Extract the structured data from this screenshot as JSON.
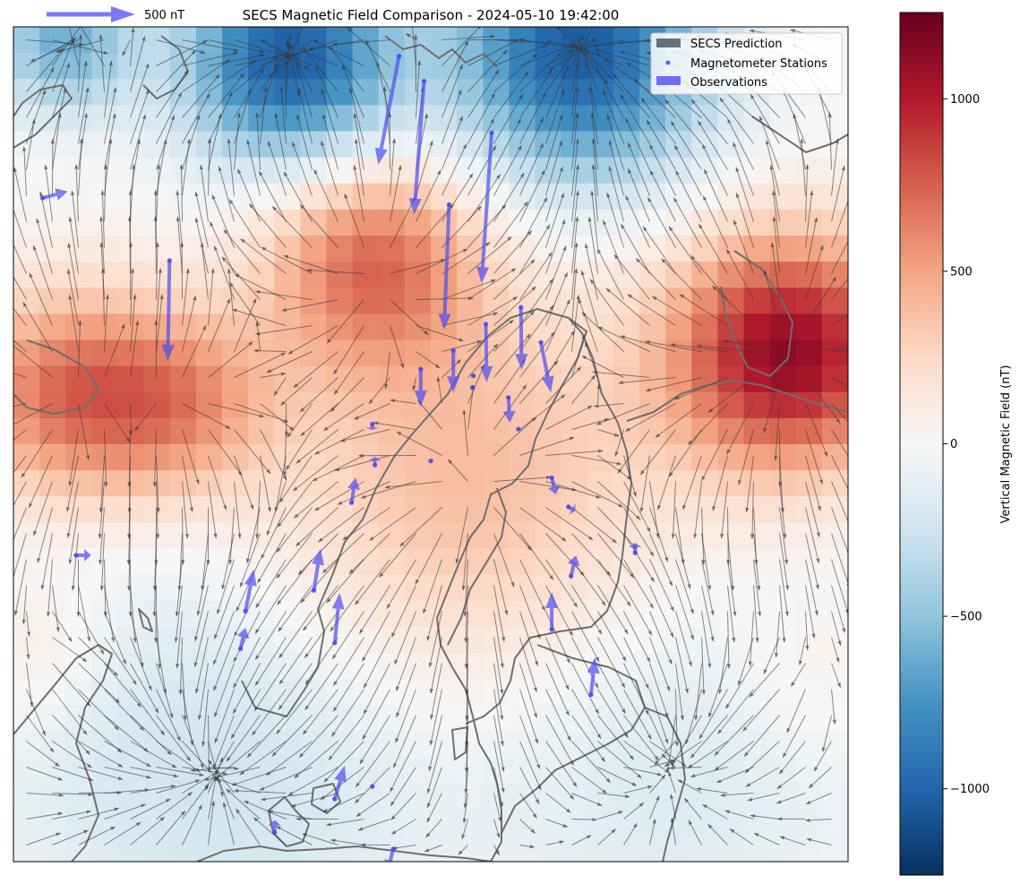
{
  "chart_data": {
    "type": "heatmap",
    "title": "SECS Magnetic Field Comparison - 2024-05-10 19:42:00",
    "colorbar": {
      "label": "Vertical Magnetic Field (nT)",
      "range": [
        -1250,
        1250
      ],
      "ticks": [
        -1000,
        -500,
        0,
        500,
        1000
      ],
      "tick_labels": [
        "−1000",
        "−500",
        "0",
        "500",
        "1000"
      ],
      "colormap": "RdBu_r"
    },
    "quiver_key": {
      "label": "500 nT",
      "value": 500
    },
    "legend": {
      "placement": "top-right",
      "entries": [
        {
          "label": "SECS Prediction",
          "color": "#6b7076"
        },
        {
          "label": "Magnetometer Stations",
          "color": "#5e5ef0"
        },
        {
          "label": "Observations",
          "color": "#6e6ef5"
        }
      ]
    },
    "grid": {
      "nx": 32,
      "ny": 32
    },
    "sources": [
      {
        "x": 0.06,
        "y": 0.44,
        "amp": 650,
        "s": 0.09
      },
      {
        "x": 0.2,
        "y": 0.45,
        "amp": 480,
        "s": 0.08
      },
      {
        "x": 0.43,
        "y": 0.28,
        "amp": 650,
        "s": 0.09
      },
      {
        "x": 0.93,
        "y": 0.39,
        "amp": 1100,
        "s": 0.1
      },
      {
        "x": 0.55,
        "y": 0.56,
        "amp": 420,
        "s": 0.18
      },
      {
        "x": 0.33,
        "y": 0.04,
        "amp": -1050,
        "s": 0.09
      },
      {
        "x": 0.68,
        "y": 0.03,
        "amp": -1050,
        "s": 0.11
      },
      {
        "x": 0.06,
        "y": 0.02,
        "amp": -600,
        "s": 0.06
      },
      {
        "x": 0.25,
        "y": 0.88,
        "amp": -260,
        "s": 0.18
      },
      {
        "x": 0.78,
        "y": 0.85,
        "amp": -200,
        "s": 0.18
      },
      {
        "x": 0.95,
        "y": 0.78,
        "amp": 120,
        "s": 0.08
      },
      {
        "x": 0.03,
        "y": 0.75,
        "amp": 150,
        "s": 0.06
      }
    ],
    "observations": [
      {
        "x": 0.462,
        "y": 0.035,
        "u": -0.025,
        "v": 0.13
      },
      {
        "x": 0.492,
        "y": 0.065,
        "u": -0.012,
        "v": 0.16
      },
      {
        "x": 0.573,
        "y": 0.127,
        "u": -0.012,
        "v": 0.18
      },
      {
        "x": 0.522,
        "y": 0.213,
        "u": -0.006,
        "v": 0.15
      },
      {
        "x": 0.187,
        "y": 0.28,
        "u": -0.002,
        "v": 0.12
      },
      {
        "x": 0.035,
        "y": 0.205,
        "u": 0.03,
        "v": -0.008
      },
      {
        "x": 0.608,
        "y": 0.336,
        "u": 0.001,
        "v": 0.075
      },
      {
        "x": 0.566,
        "y": 0.356,
        "u": 0.001,
        "v": 0.07
      },
      {
        "x": 0.527,
        "y": 0.388,
        "u": 0.0,
        "v": 0.05
      },
      {
        "x": 0.488,
        "y": 0.41,
        "u": 0.0,
        "v": 0.045
      },
      {
        "x": 0.632,
        "y": 0.378,
        "u": 0.012,
        "v": 0.06
      },
      {
        "x": 0.593,
        "y": 0.444,
        "u": 0.002,
        "v": 0.03
      },
      {
        "x": 0.551,
        "y": 0.418,
        "u": 0.0,
        "v": 0.0
      },
      {
        "x": 0.55,
        "y": 0.432,
        "u": 0.0,
        "v": 0.0
      },
      {
        "x": 0.605,
        "y": 0.482,
        "u": 0.0,
        "v": 0.0
      },
      {
        "x": 0.43,
        "y": 0.476,
        "u": 0.0,
        "v": 0.007
      },
      {
        "x": 0.5,
        "y": 0.52,
        "u": 0.0,
        "v": 0.0
      },
      {
        "x": 0.645,
        "y": 0.54,
        "u": 0.005,
        "v": 0.02
      },
      {
        "x": 0.665,
        "y": 0.575,
        "u": 0.008,
        "v": 0.005
      },
      {
        "x": 0.433,
        "y": 0.525,
        "u": 0.0,
        "v": -0.01
      },
      {
        "x": 0.405,
        "y": 0.57,
        "u": 0.005,
        "v": -0.03
      },
      {
        "x": 0.075,
        "y": 0.633,
        "u": 0.018,
        "v": 0.0
      },
      {
        "x": 0.36,
        "y": 0.675,
        "u": 0.008,
        "v": -0.05
      },
      {
        "x": 0.278,
        "y": 0.7,
        "u": 0.01,
        "v": -0.05
      },
      {
        "x": 0.272,
        "y": 0.745,
        "u": 0.006,
        "v": -0.025
      },
      {
        "x": 0.385,
        "y": 0.738,
        "u": 0.006,
        "v": -0.06
      },
      {
        "x": 0.645,
        "y": 0.722,
        "u": 0.0,
        "v": -0.045
      },
      {
        "x": 0.668,
        "y": 0.658,
        "u": 0.006,
        "v": -0.025
      },
      {
        "x": 0.745,
        "y": 0.63,
        "u": 0.0,
        "v": -0.012
      },
      {
        "x": 0.692,
        "y": 0.8,
        "u": 0.005,
        "v": -0.045
      },
      {
        "x": 0.385,
        "y": 0.925,
        "u": 0.012,
        "v": -0.04
      },
      {
        "x": 0.43,
        "y": 0.91,
        "u": 0.0,
        "v": 0.0
      },
      {
        "x": 0.313,
        "y": 0.965,
        "u": 0.0,
        "v": -0.015
      },
      {
        "x": 0.455,
        "y": 0.985,
        "u": -0.006,
        "v": 0.025
      }
    ]
  }
}
